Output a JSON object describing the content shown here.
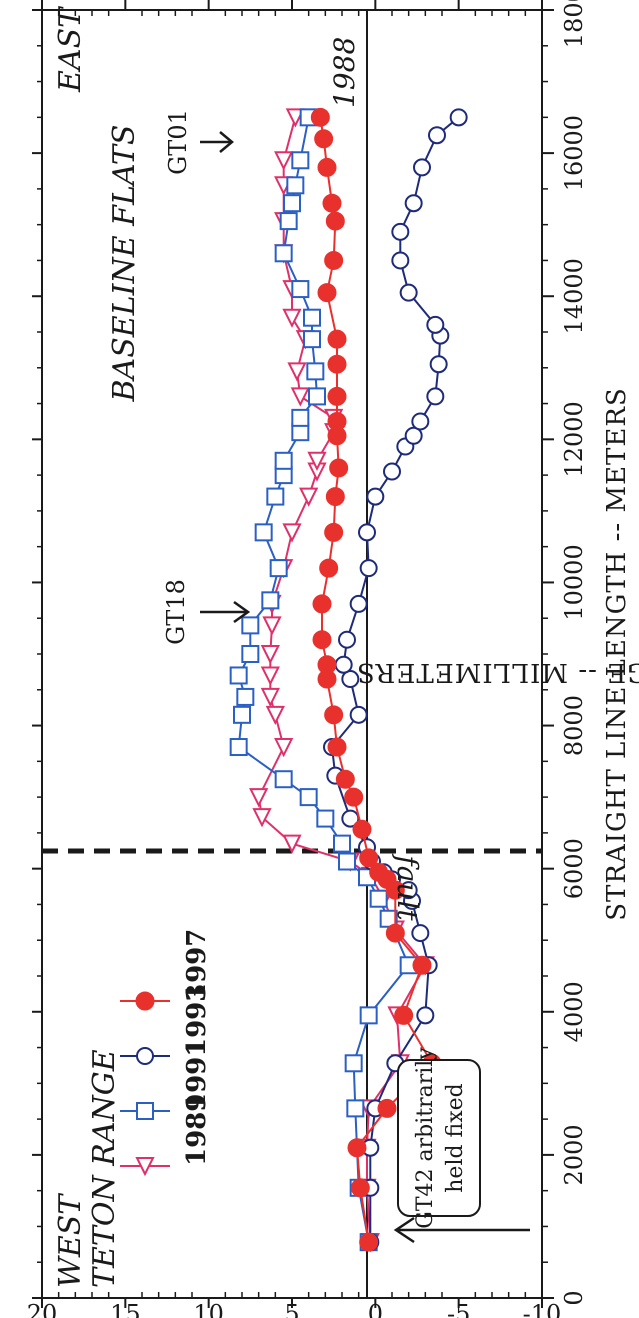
{
  "chart_data": {
    "type": "line",
    "title": "",
    "xlabel": "STRAIGHT LINE LENGTH -- METERS",
    "ylabel": "HEIGHT CHANGE -- MILLIMETERS",
    "xlim": [
      0,
      18000
    ],
    "ylim": [
      -10,
      20
    ],
    "x_ticks": [
      "0",
      "2000",
      "4000",
      "6000",
      "8000",
      "10000",
      "12000",
      "14000",
      "16000",
      "18000"
    ],
    "y_ticks": [
      "-10",
      "-5",
      "0",
      "5",
      "10",
      "15",
      "20"
    ],
    "grid": false,
    "legend_position": "upper-left",
    "series": [
      {
        "name": "1989",
        "color": "#e0306a",
        "marker": "triangle",
        "points": [
          [
            780,
            0.3
          ],
          [
            1540,
            0.5
          ],
          [
            2100,
            0.5
          ],
          [
            2650,
            0.4
          ],
          [
            3280,
            -1.5
          ],
          [
            3950,
            -1.3
          ],
          [
            4650,
            -3.0
          ],
          [
            5150,
            -1.2
          ],
          [
            5580,
            -0.5
          ],
          [
            5900,
            0.3
          ],
          [
            6100,
            1.5
          ],
          [
            6350,
            5.0
          ],
          [
            6720,
            6.8
          ],
          [
            7000,
            7.0
          ],
          [
            7700,
            5.5
          ],
          [
            8150,
            6.0
          ],
          [
            8400,
            6.3
          ],
          [
            8700,
            6.3
          ],
          [
            9000,
            6.3
          ],
          [
            9400,
            6.2
          ],
          [
            9700,
            6.2
          ],
          [
            10200,
            5.5
          ],
          [
            10700,
            5.0
          ],
          [
            11200,
            4.0
          ],
          [
            11550,
            3.5
          ],
          [
            11700,
            3.5
          ],
          [
            12100,
            2.5
          ],
          [
            12300,
            2.5
          ],
          [
            12600,
            4.5
          ],
          [
            12950,
            4.7
          ],
          [
            13400,
            4.2
          ],
          [
            13700,
            5.0
          ],
          [
            14100,
            5.0
          ],
          [
            14600,
            5.5
          ],
          [
            15050,
            5.5
          ],
          [
            15550,
            5.5
          ],
          [
            15900,
            5.5
          ],
          [
            16500,
            4.8
          ]
        ]
      },
      {
        "name": "1991",
        "color": "#2a5fc4",
        "marker": "square",
        "points": [
          [
            780,
            0.4
          ],
          [
            1540,
            1.0
          ],
          [
            2650,
            1.2
          ],
          [
            3280,
            1.3
          ],
          [
            3950,
            0.4
          ],
          [
            4650,
            -2.0
          ],
          [
            5300,
            -0.8
          ],
          [
            5580,
            -0.2
          ],
          [
            5880,
            0.5
          ],
          [
            6100,
            1.7
          ],
          [
            6350,
            2.0
          ],
          [
            6700,
            3.0
          ],
          [
            7000,
            4.0
          ],
          [
            7250,
            5.5
          ],
          [
            7700,
            8.2
          ],
          [
            8150,
            8.0
          ],
          [
            8400,
            7.8
          ],
          [
            8700,
            8.2
          ],
          [
            9000,
            7.5
          ],
          [
            9400,
            7.5
          ],
          [
            9750,
            6.3
          ],
          [
            10200,
            5.8
          ],
          [
            10700,
            6.7
          ],
          [
            11200,
            6.0
          ],
          [
            11500,
            5.5
          ],
          [
            11700,
            5.5
          ],
          [
            12100,
            4.5
          ],
          [
            12300,
            4.5
          ],
          [
            12600,
            3.5
          ],
          [
            12950,
            3.6
          ],
          [
            13400,
            3.8
          ],
          [
            13700,
            3.8
          ],
          [
            14100,
            4.5
          ],
          [
            14600,
            5.5
          ],
          [
            15050,
            5.2
          ],
          [
            15300,
            5.0
          ],
          [
            15550,
            4.8
          ],
          [
            15900,
            4.5
          ],
          [
            16500,
            4.0
          ]
        ]
      },
      {
        "name": "1993",
        "color": "#1e2a7a",
        "marker": "circle",
        "points": [
          [
            780,
            0.3
          ],
          [
            1540,
            0.3
          ],
          [
            2100,
            0.3
          ],
          [
            2650,
            0.0
          ],
          [
            3280,
            -1.2
          ],
          [
            3950,
            -3.0
          ],
          [
            4650,
            -3.2
          ],
          [
            5100,
            -2.7
          ],
          [
            5550,
            -2.2
          ],
          [
            5700,
            -2.0
          ],
          [
            5850,
            -1.0
          ],
          [
            5950,
            -0.5
          ],
          [
            6100,
            0.2
          ],
          [
            6300,
            0.5
          ],
          [
            6700,
            1.5
          ],
          [
            7300,
            2.4
          ],
          [
            7700,
            2.6
          ],
          [
            8150,
            1.0
          ],
          [
            8650,
            1.5
          ],
          [
            8850,
            1.9
          ],
          [
            9200,
            1.7
          ],
          [
            9700,
            1.0
          ],
          [
            10200,
            0.4
          ],
          [
            10700,
            0.5
          ],
          [
            11200,
            0.0
          ],
          [
            11550,
            -1.0
          ],
          [
            11900,
            -1.8
          ],
          [
            12050,
            -2.3
          ],
          [
            12250,
            -2.7
          ],
          [
            12600,
            -3.6
          ],
          [
            13050,
            -3.8
          ],
          [
            13450,
            -3.9
          ],
          [
            13600,
            -3.6
          ],
          [
            14050,
            -2.0
          ],
          [
            14500,
            -1.5
          ],
          [
            14900,
            -1.5
          ],
          [
            15300,
            -2.3
          ],
          [
            15800,
            -2.8
          ],
          [
            16250,
            -3.7
          ],
          [
            16500,
            -5.0
          ]
        ]
      },
      {
        "name": "1997",
        "color": "#e8312d",
        "marker": "filled-circle",
        "points": [
          [
            780,
            0.4
          ],
          [
            1540,
            0.9
          ],
          [
            2100,
            1.1
          ],
          [
            2650,
            -0.7
          ],
          [
            3280,
            -3.4
          ],
          [
            3950,
            -1.7
          ],
          [
            4650,
            -2.8
          ],
          [
            5100,
            -1.2
          ],
          [
            5700,
            -1.2
          ],
          [
            5850,
            -0.7
          ],
          [
            5950,
            -0.2
          ],
          [
            6150,
            0.4
          ],
          [
            6550,
            0.8
          ],
          [
            7000,
            1.3
          ],
          [
            7250,
            1.8
          ],
          [
            7700,
            2.3
          ],
          [
            8150,
            2.5
          ],
          [
            8650,
            2.9
          ],
          [
            8850,
            2.9
          ],
          [
            9200,
            3.2
          ],
          [
            9700,
            3.2
          ],
          [
            10200,
            2.8
          ],
          [
            10700,
            2.5
          ],
          [
            11200,
            2.4
          ],
          [
            11600,
            2.2
          ],
          [
            12050,
            2.3
          ],
          [
            12250,
            2.3
          ],
          [
            12600,
            2.3
          ],
          [
            13050,
            2.3
          ],
          [
            13400,
            2.3
          ],
          [
            14050,
            2.9
          ],
          [
            14500,
            2.5
          ],
          [
            15050,
            2.4
          ],
          [
            15300,
            2.6
          ],
          [
            15800,
            2.9
          ],
          [
            16200,
            3.1
          ],
          [
            16500,
            3.3
          ]
        ]
      }
    ],
    "annotations": {
      "west": "WEST",
      "teton_range": "TETON RANGE",
      "east": "EAST",
      "baseline_flats": "BASELINE FLATS",
      "gt18": "GT18",
      "gt01": "GT01",
      "year_1988": "1988",
      "fault": "fault",
      "fixed_line1": "GT42  arbitrarily",
      "fixed_line2": "held fixed"
    }
  }
}
